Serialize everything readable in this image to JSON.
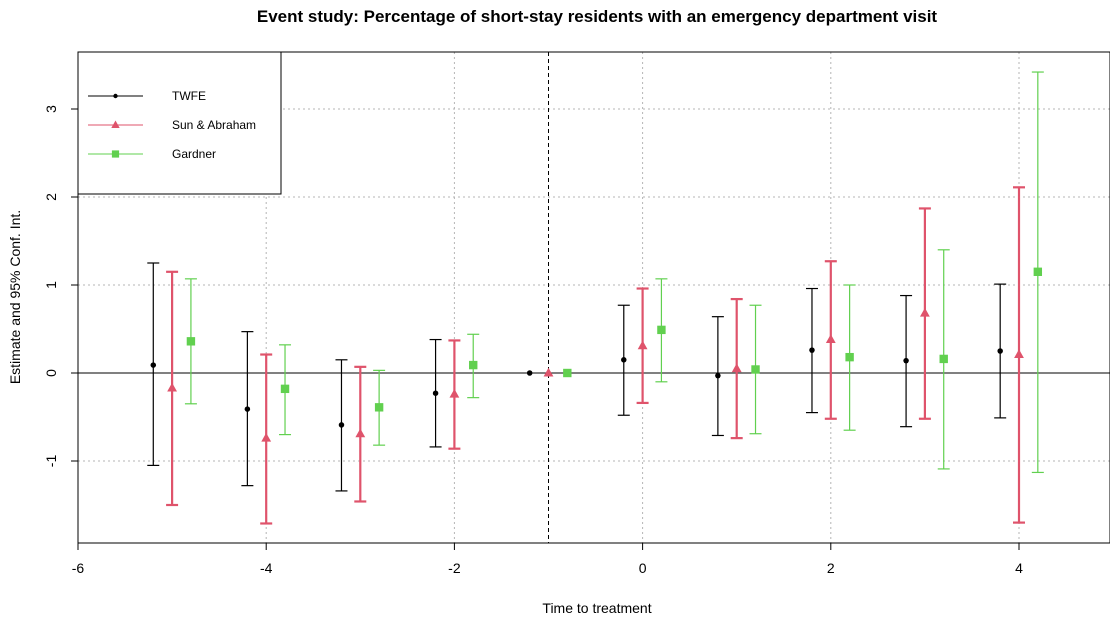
{
  "colors": {
    "twfe": "#000000",
    "sun_abraham": "#DF536B",
    "gardner": "#61D04F"
  },
  "chart_data": {
    "type": "scatter",
    "title": "Event study: Percentage of short-stay residents with an emergency department visit",
    "xlabel": "Time to treatment",
    "ylabel": "Estimate and 95% Conf. Int.",
    "xlim": [
      -6,
      5
    ],
    "ylim": [
      -1.9,
      3.6
    ],
    "xticks": [
      "-6",
      "-4",
      "-2",
      "0",
      "2",
      "4"
    ],
    "yticks": [
      "-1",
      "0",
      "1",
      "2",
      "3"
    ],
    "grid": true,
    "legend_position": "top-left",
    "reference_line_x": -1,
    "reference_line_y": 0,
    "series": [
      {
        "name": "TWFE",
        "marker": "circle",
        "points": [
          {
            "x": -5.2,
            "y": 0.09,
            "lo": -1.05,
            "hi": 1.25
          },
          {
            "x": -4.2,
            "y": -0.41,
            "lo": -1.28,
            "hi": 0.47
          },
          {
            "x": -3.2,
            "y": -0.59,
            "lo": -1.34,
            "hi": 0.15
          },
          {
            "x": -2.2,
            "y": -0.23,
            "lo": -0.84,
            "hi": 0.38
          },
          {
            "x": -1.2,
            "y": 0.0,
            "lo": null,
            "hi": null
          },
          {
            "x": -0.2,
            "y": 0.15,
            "lo": -0.48,
            "hi": 0.77
          },
          {
            "x": 0.8,
            "y": -0.03,
            "lo": -0.71,
            "hi": 0.64
          },
          {
            "x": 1.8,
            "y": 0.26,
            "lo": -0.45,
            "hi": 0.96
          },
          {
            "x": 2.8,
            "y": 0.14,
            "lo": -0.61,
            "hi": 0.88
          },
          {
            "x": 3.8,
            "y": 0.25,
            "lo": -0.51,
            "hi": 1.01
          }
        ]
      },
      {
        "name": "Sun & Abraham",
        "marker": "triangle",
        "points": [
          {
            "x": -5.0,
            "y": -0.17,
            "lo": -1.5,
            "hi": 1.15
          },
          {
            "x": -4.0,
            "y": -0.74,
            "lo": -1.71,
            "hi": 0.21
          },
          {
            "x": -3.0,
            "y": -0.69,
            "lo": -1.46,
            "hi": 0.07
          },
          {
            "x": -2.0,
            "y": -0.24,
            "lo": -0.86,
            "hi": 0.37
          },
          {
            "x": -1.0,
            "y": 0.0,
            "lo": null,
            "hi": null
          },
          {
            "x": 0.0,
            "y": 0.31,
            "lo": -0.34,
            "hi": 0.96
          },
          {
            "x": 1.0,
            "y": 0.05,
            "lo": -0.74,
            "hi": 0.84
          },
          {
            "x": 2.0,
            "y": 0.38,
            "lo": -0.52,
            "hi": 1.27
          },
          {
            "x": 3.0,
            "y": 0.68,
            "lo": -0.52,
            "hi": 1.87
          },
          {
            "x": 4.0,
            "y": 0.21,
            "lo": -1.7,
            "hi": 2.11
          }
        ]
      },
      {
        "name": "Gardner",
        "marker": "square",
        "points": [
          {
            "x": -4.8,
            "y": 0.36,
            "lo": -0.35,
            "hi": 1.07
          },
          {
            "x": -3.8,
            "y": -0.18,
            "lo": -0.7,
            "hi": 0.32
          },
          {
            "x": -2.8,
            "y": -0.39,
            "lo": -0.82,
            "hi": 0.03
          },
          {
            "x": -1.8,
            "y": 0.09,
            "lo": -0.28,
            "hi": 0.44
          },
          {
            "x": -0.8,
            "y": 0.0,
            "lo": null,
            "hi": null
          },
          {
            "x": 0.2,
            "y": 0.49,
            "lo": -0.1,
            "hi": 1.07
          },
          {
            "x": 1.2,
            "y": 0.04,
            "lo": -0.69,
            "hi": 0.77
          },
          {
            "x": 2.2,
            "y": 0.18,
            "lo": -0.65,
            "hi": 1.0
          },
          {
            "x": 3.2,
            "y": 0.16,
            "lo": -1.09,
            "hi": 1.4
          },
          {
            "x": 4.2,
            "y": 1.15,
            "lo": -1.13,
            "hi": 3.42
          }
        ]
      }
    ]
  }
}
